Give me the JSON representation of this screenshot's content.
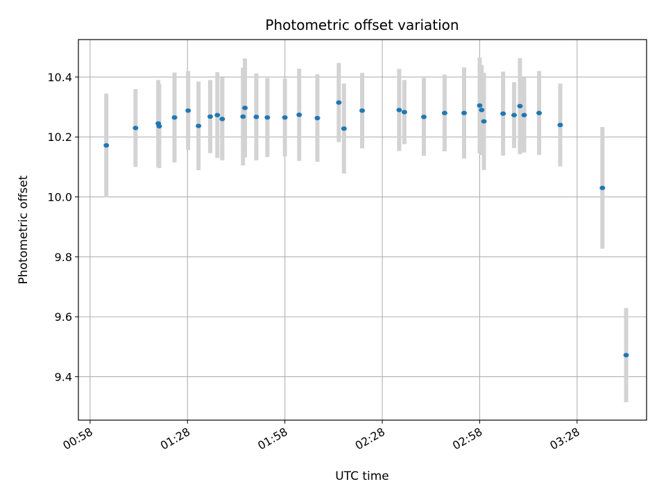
{
  "chart_data": {
    "type": "scatter",
    "title": "Photometric offset variation",
    "xlabel": "UTC time",
    "ylabel": "Photometric offset",
    "x_ticks": [
      "00:58",
      "01:28",
      "01:58",
      "02:28",
      "02:58",
      "03:28"
    ],
    "y_ticks": [
      "9.4",
      "9.6",
      "9.8",
      "10.0",
      "10.2",
      "10.4"
    ],
    "xlim": [
      "00:54:24",
      "03:49:24"
    ],
    "ylim": [
      9.255,
      10.525
    ],
    "grid": true,
    "colors": {
      "point": "#1f77b4",
      "errorbar": "#d3d3d3",
      "grid": "#b0b0b0"
    },
    "series": [
      {
        "points": [
          {
            "t": "01:03:00",
            "y": 10.172,
            "err": 0.173
          },
          {
            "t": "01:12:00",
            "y": 10.23,
            "err": 0.13
          },
          {
            "t": "01:19:00",
            "y": 10.245,
            "err": 0.145
          },
          {
            "t": "01:19:18",
            "y": 10.236,
            "err": 0.14
          },
          {
            "t": "01:24:00",
            "y": 10.265,
            "err": 0.15
          },
          {
            "t": "01:28:12",
            "y": 10.288,
            "err": 0.132
          },
          {
            "t": "01:31:24",
            "y": 10.237,
            "err": 0.148
          },
          {
            "t": "01:35:00",
            "y": 10.268,
            "err": 0.122
          },
          {
            "t": "01:37:12",
            "y": 10.273,
            "err": 0.143
          },
          {
            "t": "01:38:42",
            "y": 10.26,
            "err": 0.138
          },
          {
            "t": "01:45:06",
            "y": 10.268,
            "err": 0.163
          },
          {
            "t": "01:45:42",
            "y": 10.297,
            "err": 0.165
          },
          {
            "t": "01:49:12",
            "y": 10.267,
            "err": 0.145
          },
          {
            "t": "01:52:36",
            "y": 10.265,
            "err": 0.132
          },
          {
            "t": "01:58:00",
            "y": 10.265,
            "err": 0.13
          },
          {
            "t": "02:02:24",
            "y": 10.274,
            "err": 0.154
          },
          {
            "t": "02:08:00",
            "y": 10.263,
            "err": 0.146
          },
          {
            "t": "02:14:36",
            "y": 10.315,
            "err": 0.132
          },
          {
            "t": "02:16:12",
            "y": 10.228,
            "err": 0.15
          },
          {
            "t": "02:21:48",
            "y": 10.288,
            "err": 0.126
          },
          {
            "t": "02:33:12",
            "y": 10.29,
            "err": 0.137
          },
          {
            "t": "02:34:48",
            "y": 10.283,
            "err": 0.107
          },
          {
            "t": "02:40:48",
            "y": 10.267,
            "err": 0.13
          },
          {
            "t": "02:47:12",
            "y": 10.28,
            "err": 0.128
          },
          {
            "t": "02:53:12",
            "y": 10.28,
            "err": 0.152
          },
          {
            "t": "02:58:00",
            "y": 10.305,
            "err": 0.16
          },
          {
            "t": "02:58:36",
            "y": 10.29,
            "err": 0.15
          },
          {
            "t": "02:59:18",
            "y": 10.252,
            "err": 0.162
          },
          {
            "t": "03:05:12",
            "y": 10.278,
            "err": 0.14
          },
          {
            "t": "03:08:36",
            "y": 10.273,
            "err": 0.11
          },
          {
            "t": "03:10:24",
            "y": 10.303,
            "err": 0.16
          },
          {
            "t": "03:11:42",
            "y": 10.273,
            "err": 0.125
          },
          {
            "t": "03:16:18",
            "y": 10.28,
            "err": 0.14
          },
          {
            "t": "03:22:48",
            "y": 10.24,
            "err": 0.138
          },
          {
            "t": "03:35:48",
            "y": 10.03,
            "err": 0.203
          },
          {
            "t": "03:43:06",
            "y": 9.472,
            "err": 0.157
          }
        ]
      }
    ]
  }
}
